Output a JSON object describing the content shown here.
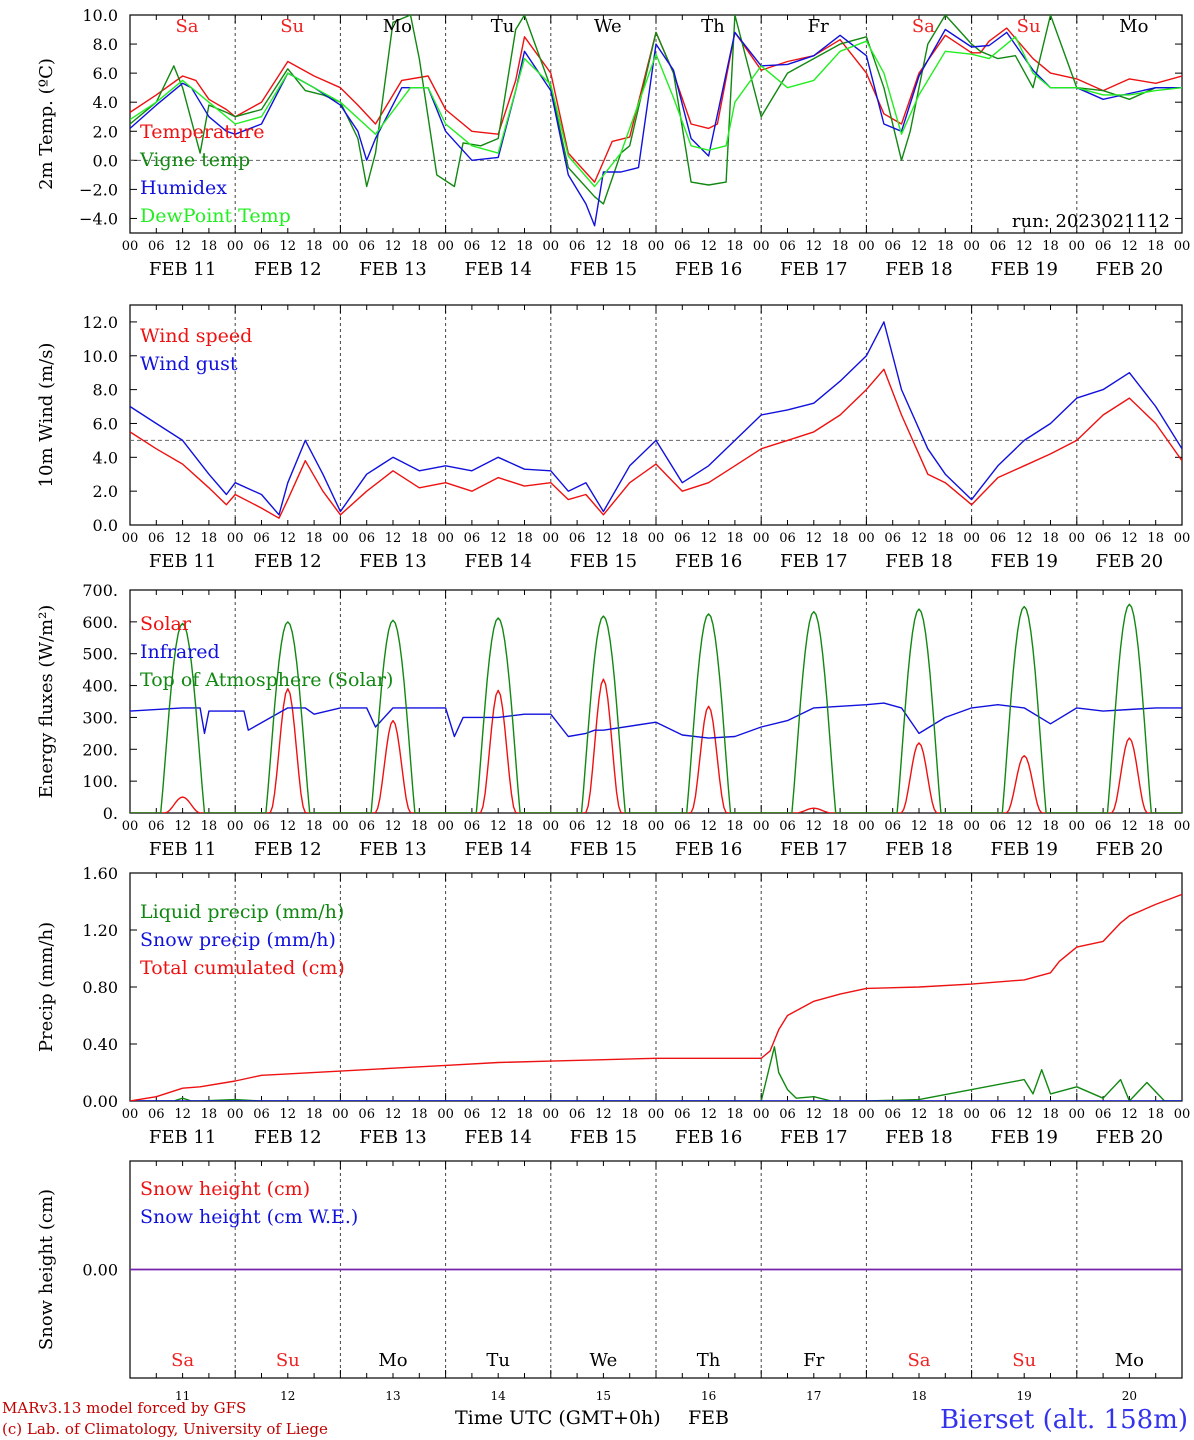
{
  "station": "Bierset (alt. 158m)",
  "footer": {
    "model": "MARv3.13 model forced by GFS",
    "credit": "(c) Lab. of Climatology, University of Liege",
    "xlabel": "Time UTC (GMT+0h)",
    "month": "FEB"
  },
  "hour_ticks": [
    "00",
    "06",
    "12",
    "18"
  ],
  "days": [
    {
      "date": "FEB 11",
      "num": "11",
      "abbr": "Sa",
      "weekend": true
    },
    {
      "date": "FEB 12",
      "num": "12",
      "abbr": "Su",
      "weekend": true
    },
    {
      "date": "FEB 13",
      "num": "13",
      "abbr": "Mo",
      "weekend": false
    },
    {
      "date": "FEB 14",
      "num": "14",
      "abbr": "Tu",
      "weekend": false
    },
    {
      "date": "FEB 15",
      "num": "15",
      "abbr": "We",
      "weekend": false
    },
    {
      "date": "FEB 16",
      "num": "16",
      "abbr": "Th",
      "weekend": false
    },
    {
      "date": "FEB 17",
      "num": "17",
      "abbr": "Fr",
      "weekend": false
    },
    {
      "date": "FEB 18",
      "num": "18",
      "abbr": "Sa",
      "weekend": true
    },
    {
      "date": "FEB 19",
      "num": "19",
      "abbr": "Su",
      "weekend": true
    },
    {
      "date": "FEB 20",
      "num": "20",
      "abbr": "Mo",
      "weekend": false
    }
  ],
  "colors": {
    "red": "#ee1111",
    "green": "#118811",
    "blue": "#1111dd",
    "lightgreen": "#22ee22",
    "purple": "#7722aa",
    "weekend": "#ee2222"
  },
  "chart_data": [
    {
      "type": "line",
      "ylabel": "2m Temp. (ºC)",
      "ylim": [
        -5,
        10
      ],
      "yticks": [
        "10.0",
        "8.0",
        "6.0",
        "4.0",
        "2.0",
        "0.0",
        "−2.0",
        "−4.0"
      ],
      "ytick_values": [
        10,
        8,
        6,
        4,
        2,
        0,
        -2,
        -4
      ],
      "refline": 0,
      "note": "run: 2023021112",
      "show_day_abbr": true,
      "series": [
        {
          "name": "Temperature",
          "color": "#ee1111",
          "x": [
            0,
            6,
            12,
            15,
            18,
            22,
            24,
            30,
            36,
            42,
            48,
            52,
            56,
            62,
            68,
            72,
            78,
            84,
            88,
            90,
            96,
            100,
            106,
            110,
            114,
            120,
            124,
            128,
            132,
            134,
            138,
            144,
            150,
            156,
            162,
            168,
            172,
            176,
            180,
            186,
            192,
            194,
            196,
            200,
            206,
            210,
            216,
            222,
            228,
            234,
            240
          ],
          "values": [
            3.3,
            4.5,
            5.8,
            5.5,
            4.2,
            3.5,
            3.0,
            4.0,
            6.8,
            5.8,
            5.0,
            3.8,
            2.5,
            5.5,
            5.8,
            3.5,
            2.0,
            1.8,
            5.5,
            8.5,
            6.0,
            0.5,
            -1.5,
            1.3,
            1.6,
            8.8,
            6.0,
            2.5,
            2.2,
            2.5,
            8.8,
            6.2,
            6.8,
            7.2,
            8.3,
            6.0,
            3.2,
            2.5,
            6.0,
            8.6,
            7.4,
            7.4,
            8.2,
            9.1,
            7.0,
            6.0,
            5.6,
            4.8,
            5.6,
            5.3,
            5.8
          ]
        },
        {
          "name": "Vigne temp",
          "color": "#118811",
          "x": [
            0,
            6,
            10,
            12,
            16,
            18,
            22,
            24,
            30,
            36,
            40,
            44,
            48,
            52,
            54,
            56,
            60,
            64,
            66,
            70,
            74,
            76,
            80,
            84,
            88,
            90,
            96,
            100,
            106,
            108,
            112,
            114,
            120,
            124,
            128,
            132,
            136,
            138,
            144,
            150,
            156,
            162,
            168,
            172,
            176,
            178,
            182,
            186,
            192,
            194,
            198,
            202,
            206,
            210,
            216,
            222,
            228,
            234,
            240
          ],
          "values": [
            2.5,
            4.0,
            6.5,
            5.0,
            0.5,
            3.8,
            3.3,
            3.0,
            3.5,
            6.3,
            4.8,
            4.5,
            4.0,
            1.5,
            -1.8,
            0.5,
            9.5,
            10.0,
            7.0,
            -1.0,
            -1.8,
            1.2,
            1.0,
            1.5,
            9.0,
            10.0,
            5.0,
            -0.5,
            -2.5,
            -3.0,
            0.5,
            1.0,
            8.8,
            6.0,
            -1.5,
            -1.7,
            -1.5,
            10.0,
            3.0,
            6.0,
            7.0,
            8.0,
            8.5,
            5.0,
            0.0,
            2.0,
            8.0,
            10.0,
            8.0,
            7.5,
            7.0,
            7.2,
            5.0,
            10.0,
            5.0,
            4.8,
            4.2,
            5.0,
            5.0
          ]
        },
        {
          "name": "Humidex",
          "color": "#1111dd",
          "x": [
            0,
            6,
            12,
            14,
            18,
            22,
            24,
            30,
            36,
            42,
            48,
            52,
            54,
            56,
            62,
            68,
            72,
            78,
            84,
            88,
            90,
            96,
            100,
            104,
            106,
            108,
            112,
            116,
            120,
            124,
            128,
            132,
            138,
            144,
            150,
            156,
            162,
            168,
            172,
            176,
            180,
            186,
            192,
            196,
            200,
            206,
            210,
            216,
            222,
            228,
            234,
            240
          ],
          "values": [
            2.2,
            3.8,
            5.3,
            5.0,
            3.0,
            2.0,
            1.8,
            2.5,
            6.0,
            5.0,
            3.8,
            2.0,
            0.0,
            1.5,
            5.0,
            5.0,
            2.0,
            0.0,
            0.2,
            4.8,
            7.5,
            4.8,
            -1.0,
            -3.0,
            -4.5,
            -0.8,
            -0.8,
            -0.5,
            8.0,
            6.2,
            1.5,
            0.3,
            8.8,
            6.5,
            6.6,
            7.2,
            8.6,
            7.2,
            2.5,
            2.0,
            5.8,
            9.0,
            7.8,
            7.9,
            8.8,
            6.2,
            5.0,
            5.0,
            4.2,
            4.6,
            5.0,
            5.0
          ]
        },
        {
          "name": "DewPoint Temp",
          "color": "#22ee22",
          "x": [
            0,
            6,
            12,
            18,
            24,
            30,
            36,
            42,
            48,
            56,
            64,
            68,
            72,
            78,
            84,
            90,
            96,
            100,
            106,
            112,
            120,
            124,
            128,
            132,
            136,
            138,
            144,
            150,
            156,
            162,
            168,
            172,
            176,
            180,
            186,
            192,
            196,
            202,
            206,
            210,
            216,
            222,
            228,
            234,
            240
          ],
          "values": [
            2.8,
            4.0,
            5.5,
            4.0,
            2.5,
            3.0,
            6.0,
            5.0,
            4.0,
            1.8,
            5.0,
            5.0,
            2.5,
            1.0,
            0.5,
            7.0,
            5.2,
            0.3,
            -1.8,
            0.5,
            7.3,
            4.3,
            1.0,
            0.7,
            1.0,
            4.0,
            6.5,
            5.0,
            5.5,
            7.5,
            8.2,
            6.0,
            1.8,
            4.5,
            7.5,
            7.3,
            7.0,
            8.5,
            6.0,
            5.0,
            5.0,
            4.5,
            4.5,
            4.8,
            5.0
          ]
        }
      ]
    },
    {
      "type": "line",
      "ylabel": "10m Wind (m/s)",
      "ylim": [
        0,
        13
      ],
      "yticks": [
        "12.0",
        "10.0",
        "8.0",
        "6.0",
        "4.0",
        "2.0",
        "0.0"
      ],
      "ytick_values": [
        12,
        10,
        8,
        6,
        4,
        2,
        0
      ],
      "refline": 5,
      "show_day_abbr": false,
      "series": [
        {
          "name": "Wind speed",
          "color": "#ee1111",
          "x": [
            0,
            6,
            12,
            18,
            22,
            24,
            30,
            34,
            36,
            40,
            44,
            48,
            54,
            60,
            66,
            72,
            78,
            84,
            90,
            96,
            100,
            104,
            108,
            114,
            120,
            126,
            132,
            138,
            144,
            150,
            156,
            162,
            168,
            172,
            176,
            182,
            186,
            192,
            198,
            204,
            210,
            216,
            222,
            228,
            234,
            240
          ],
          "values": [
            5.5,
            4.5,
            3.6,
            2.2,
            1.2,
            1.8,
            1.0,
            0.4,
            1.5,
            3.8,
            2.0,
            0.6,
            2.0,
            3.2,
            2.2,
            2.5,
            2.0,
            2.8,
            2.3,
            2.5,
            1.5,
            1.8,
            0.6,
            2.5,
            3.6,
            2.0,
            2.5,
            3.5,
            4.5,
            5.0,
            5.5,
            6.5,
            8.0,
            9.2,
            6.5,
            3.0,
            2.5,
            1.2,
            2.8,
            3.5,
            4.2,
            5.0,
            6.5,
            7.5,
            6.0,
            3.8
          ]
        },
        {
          "name": "Wind gust",
          "color": "#1111dd",
          "x": [
            0,
            6,
            12,
            18,
            22,
            24,
            30,
            34,
            36,
            40,
            44,
            48,
            54,
            60,
            66,
            72,
            78,
            84,
            90,
            96,
            100,
            104,
            108,
            114,
            120,
            126,
            132,
            138,
            144,
            150,
            156,
            162,
            168,
            172,
            176,
            182,
            186,
            192,
            198,
            204,
            210,
            216,
            222,
            228,
            234,
            240
          ],
          "values": [
            7.0,
            6.0,
            5.0,
            3.0,
            1.8,
            2.5,
            1.8,
            0.6,
            2.5,
            5.0,
            3.0,
            0.8,
            3.0,
            4.0,
            3.2,
            3.5,
            3.2,
            4.0,
            3.3,
            3.2,
            2.0,
            2.5,
            0.8,
            3.5,
            5.0,
            2.5,
            3.5,
            5.0,
            6.5,
            6.8,
            7.2,
            8.5,
            10.0,
            12.0,
            8.0,
            4.5,
            3.0,
            1.5,
            3.5,
            5.0,
            6.0,
            7.5,
            8.0,
            9.0,
            7.0,
            4.5
          ]
        }
      ]
    },
    {
      "type": "line",
      "ylabel": "Energy fluxes (W/m²)",
      "ylim": [
        0,
        700
      ],
      "yticks": [
        "700.",
        "600.",
        "500.",
        "400.",
        "300.",
        "200.",
        "100.",
        "0."
      ],
      "ytick_values": [
        700,
        600,
        500,
        400,
        300,
        200,
        100,
        0
      ],
      "show_day_abbr": false,
      "series": [
        {
          "name": "Solar",
          "color": "#ee1111",
          "peaks": [
            50,
            390,
            290,
            385,
            420,
            335,
            15,
            220,
            180,
            235
          ]
        },
        {
          "name": "Infrared",
          "color": "#1111dd",
          "x": [
            0,
            12,
            16,
            17,
            18,
            24,
            26,
            27,
            36,
            40,
            42,
            48,
            54,
            56,
            60,
            64,
            72,
            74,
            76,
            84,
            90,
            96,
            100,
            104,
            106,
            108,
            120,
            126,
            132,
            138,
            144,
            150,
            156,
            162,
            168,
            172,
            176,
            180,
            186,
            192,
            198,
            204,
            210,
            216,
            222,
            228,
            234,
            240
          ],
          "values": [
            320,
            330,
            330,
            250,
            320,
            320,
            320,
            260,
            330,
            330,
            310,
            330,
            330,
            270,
            330,
            330,
            330,
            240,
            300,
            300,
            310,
            310,
            240,
            250,
            260,
            260,
            285,
            245,
            235,
            240,
            270,
            290,
            330,
            335,
            340,
            345,
            330,
            250,
            300,
            330,
            340,
            330,
            280,
            330,
            320,
            325,
            330,
            330
          ]
        },
        {
          "name": "Top of Atmosphere (Solar)",
          "color": "#118811",
          "peaks": [
            595,
            600,
            605,
            612,
            618,
            625,
            632,
            640,
            648,
            655
          ]
        }
      ]
    },
    {
      "type": "line",
      "ylabel": "Precip (mm/h)",
      "ylim": [
        0,
        1.6
      ],
      "yticks": [
        "1.60",
        "1.20",
        "0.80",
        "0.40",
        "0.00"
      ],
      "ytick_values": [
        1.6,
        1.2,
        0.8,
        0.4,
        0
      ],
      "show_day_abbr": false,
      "series": [
        {
          "name": "Liquid precip (mm/h)",
          "color": "#118811",
          "x": [
            0,
            10,
            12,
            14,
            16,
            24,
            30,
            60,
            144,
            147,
            148,
            150,
            152,
            156,
            160,
            168,
            180,
            204,
            206,
            208,
            210,
            216,
            222,
            226,
            228,
            232,
            236,
            240
          ],
          "values": [
            0,
            0,
            0.02,
            0,
            0,
            0.01,
            0,
            0,
            0,
            0.38,
            0.2,
            0.08,
            0.02,
            0.03,
            0,
            0,
            0.01,
            0.15,
            0.05,
            0.22,
            0.05,
            0.1,
            0.02,
            0.15,
            0,
            0.13,
            0,
            0
          ]
        },
        {
          "name": "Snow precip (mm/h)",
          "color": "#1111dd",
          "x": [
            0,
            240
          ],
          "values": [
            0,
            0
          ]
        },
        {
          "name": "Total cumulated (cm)",
          "color": "#ee1111",
          "x": [
            0,
            6,
            12,
            16,
            24,
            30,
            36,
            48,
            60,
            72,
            84,
            96,
            108,
            120,
            132,
            144,
            146,
            148,
            150,
            156,
            162,
            168,
            180,
            192,
            204,
            210,
            212,
            216,
            222,
            226,
            228,
            234,
            240
          ],
          "values": [
            0,
            0.03,
            0.09,
            0.1,
            0.14,
            0.18,
            0.19,
            0.21,
            0.23,
            0.25,
            0.27,
            0.28,
            0.29,
            0.3,
            0.3,
            0.3,
            0.35,
            0.5,
            0.6,
            0.7,
            0.75,
            0.79,
            0.8,
            0.82,
            0.85,
            0.9,
            0.98,
            1.08,
            1.12,
            1.25,
            1.3,
            1.38,
            1.45
          ]
        }
      ]
    },
    {
      "type": "line",
      "ylabel": "Snow height (cm)",
      "ylim": [
        -1,
        1
      ],
      "yticks": [
        "0.00"
      ],
      "ytick_values": [
        0
      ],
      "show_day_abbr": false,
      "series": [
        {
          "name": "Snow height (cm)",
          "color": "#ee1111",
          "x": [
            0,
            240
          ],
          "values": [
            0,
            0
          ]
        },
        {
          "name": "Snow height (cm W.E.)",
          "color": "#1111dd",
          "x": [
            0,
            240
          ],
          "values": [
            0,
            0
          ]
        }
      ]
    }
  ]
}
